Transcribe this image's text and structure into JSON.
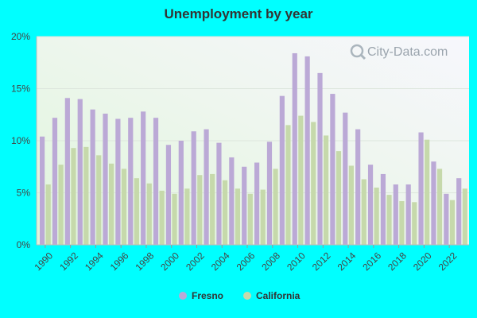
{
  "title": "Unemployment by year",
  "watermark": "City-Data.com",
  "chart_data": {
    "type": "bar",
    "title": "Unemployment by year",
    "categories": [
      "1990",
      "1991",
      "1992",
      "1993",
      "1994",
      "1995",
      "1996",
      "1997",
      "1998",
      "1999",
      "2000",
      "2001",
      "2002",
      "2003",
      "2004",
      "2005",
      "2006",
      "2007",
      "2008",
      "2009",
      "2010",
      "2011",
      "2012",
      "2013",
      "2014",
      "2015",
      "2016",
      "2017",
      "2018",
      "2019",
      "2020",
      "2021",
      "2022",
      "2023"
    ],
    "x_tick_labels": [
      "1990",
      "1992",
      "1994",
      "1996",
      "1998",
      "2000",
      "2002",
      "2004",
      "2006",
      "2008",
      "2010",
      "2012",
      "2014",
      "2016",
      "2018",
      "2020",
      "2022"
    ],
    "series": [
      {
        "name": "Fresno",
        "color": "#BBA9D6",
        "values": [
          10.4,
          12.2,
          14.1,
          14.0,
          13.0,
          12.6,
          12.1,
          12.2,
          12.8,
          12.2,
          9.6,
          10.0,
          10.9,
          11.1,
          9.8,
          8.4,
          7.5,
          7.9,
          9.9,
          14.3,
          18.4,
          18.1,
          16.5,
          14.5,
          12.7,
          11.1,
          7.7,
          6.8,
          5.8,
          5.8,
          10.8,
          8.0,
          4.9,
          6.4
        ]
      },
      {
        "name": "California",
        "color": "#C6D9AB",
        "values": [
          5.8,
          7.7,
          9.3,
          9.4,
          8.6,
          7.8,
          7.3,
          6.4,
          5.9,
          5.2,
          4.9,
          5.4,
          6.7,
          6.8,
          6.2,
          5.4,
          4.9,
          5.3,
          7.3,
          11.5,
          12.4,
          11.8,
          10.5,
          9.0,
          7.6,
          6.3,
          5.5,
          4.8,
          4.2,
          4.1,
          10.1,
          7.3,
          4.3,
          5.4
        ]
      }
    ],
    "y_ticks": [
      "0%",
      "5%",
      "10%",
      "15%",
      "20%"
    ],
    "ylim": [
      0,
      20
    ],
    "grid": true,
    "legend": "bottom-center",
    "legend_items": [
      "Fresno",
      "California"
    ]
  }
}
